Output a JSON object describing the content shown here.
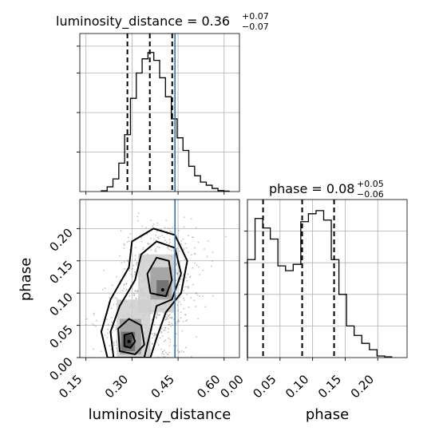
{
  "chart_data": {
    "type": "corner",
    "parameters": [
      "luminosity_distance",
      "phase"
    ],
    "truth": {
      "luminosity_distance": 0.44,
      "phase": null
    },
    "colors": {
      "truth": "#1f77b4",
      "hist": "#000000",
      "grid": "#b0b0b0"
    },
    "panels": [
      {
        "id": "ld-hist",
        "type": "step-histogram",
        "title": {
          "prefix": "luminosity_distance = 0.36",
          "sup": "+0.07",
          "sub": "−0.07"
        },
        "xlim": [
          0.13,
          0.65
        ],
        "ylim": [
          0,
          1.0
        ],
        "bins": [
          0.2,
          0.219,
          0.238,
          0.257,
          0.276,
          0.295,
          0.314,
          0.333,
          0.352,
          0.371,
          0.39,
          0.409,
          0.428,
          0.447,
          0.466,
          0.485,
          0.504,
          0.523,
          0.542,
          0.561,
          0.58,
          0.599,
          0.618
        ],
        "values": [
          0.005,
          0.03,
          0.08,
          0.18,
          0.36,
          0.59,
          0.75,
          0.84,
          0.88,
          0.83,
          0.72,
          0.6,
          0.46,
          0.34,
          0.26,
          0.16,
          0.1,
          0.06,
          0.04,
          0.02,
          0.006,
          0.003
        ],
        "quantiles": [
          0.285,
          0.358,
          0.431
        ],
        "truth": 0.44,
        "xticks": [
          0.15,
          0.3,
          0.45,
          0.6
        ]
      },
      {
        "id": "phase-hist",
        "type": "step-histogram",
        "title": {
          "prefix": "phase = 0.08",
          "sup": "+0.05",
          "sub": "−0.06"
        },
        "xlim": [
          0.0,
          0.245
        ],
        "ylim": [
          0,
          1.0
        ],
        "bins": [
          0.0,
          0.0117,
          0.0234,
          0.0351,
          0.0468,
          0.0585,
          0.0702,
          0.0819,
          0.0936,
          0.1053,
          0.117,
          0.1287,
          0.1404,
          0.1521,
          0.1638,
          0.1755,
          0.1872,
          0.1989,
          0.2106,
          0.2223
        ],
        "values": [
          0.62,
          0.88,
          0.82,
          0.75,
          0.58,
          0.55,
          0.59,
          0.86,
          0.91,
          0.93,
          0.87,
          0.62,
          0.4,
          0.2,
          0.14,
          0.09,
          0.05,
          0.01,
          0.005
        ],
        "quantiles": [
          0.024,
          0.084,
          0.133
        ],
        "xticks": [
          0.0,
          0.05,
          0.1,
          0.15,
          0.2
        ]
      },
      {
        "id": "ld-phase-2d",
        "type": "density-contour",
        "x": "luminosity_distance",
        "y": "phase",
        "xlim": [
          0.13,
          0.65
        ],
        "ylim": [
          0.0,
          0.245
        ],
        "xticks": [
          0.15,
          0.3,
          0.45,
          0.6
        ],
        "yticks": [
          0.0,
          0.05,
          0.1,
          0.15,
          0.2
        ],
        "modes": [
          {
            "x": 0.29,
            "y": 0.025
          },
          {
            "x": 0.4,
            "y": 0.105
          }
        ],
        "truth_x": 0.44
      }
    ],
    "axes": {
      "xlabel_left": "luminosity_distance",
      "xlabel_right": "phase",
      "ylabel": "phase"
    },
    "tick_labels": {
      "ld": [
        "0.15",
        "0.30",
        "0.45",
        "0.60"
      ],
      "phase": [
        "0.00",
        "0.05",
        "0.10",
        "0.15",
        "0.20"
      ]
    }
  }
}
